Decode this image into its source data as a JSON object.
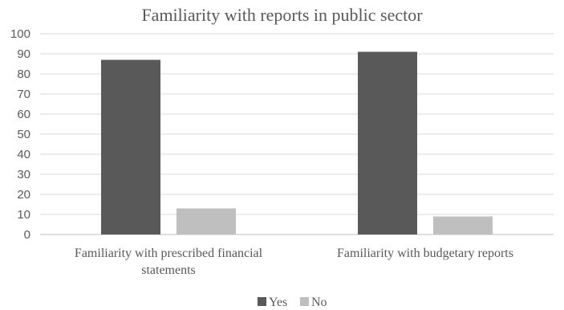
{
  "chart_data": {
    "type": "bar",
    "title": "Familiarity with reports in public sector",
    "categories": [
      [
        "Familiarity with prescribed financial",
        "statements"
      ],
      [
        "Familiarity with budgetary reports"
      ]
    ],
    "series": [
      {
        "name": "Yes",
        "color": "#595959",
        "values": [
          87,
          91
        ]
      },
      {
        "name": "No",
        "color": "#bfbfbf",
        "values": [
          13,
          9
        ]
      }
    ],
    "ylim": [
      0,
      100
    ],
    "yticks": [
      0,
      10,
      20,
      30,
      40,
      50,
      60,
      70,
      80,
      90,
      100
    ],
    "grid": true,
    "legend": "bottom"
  }
}
